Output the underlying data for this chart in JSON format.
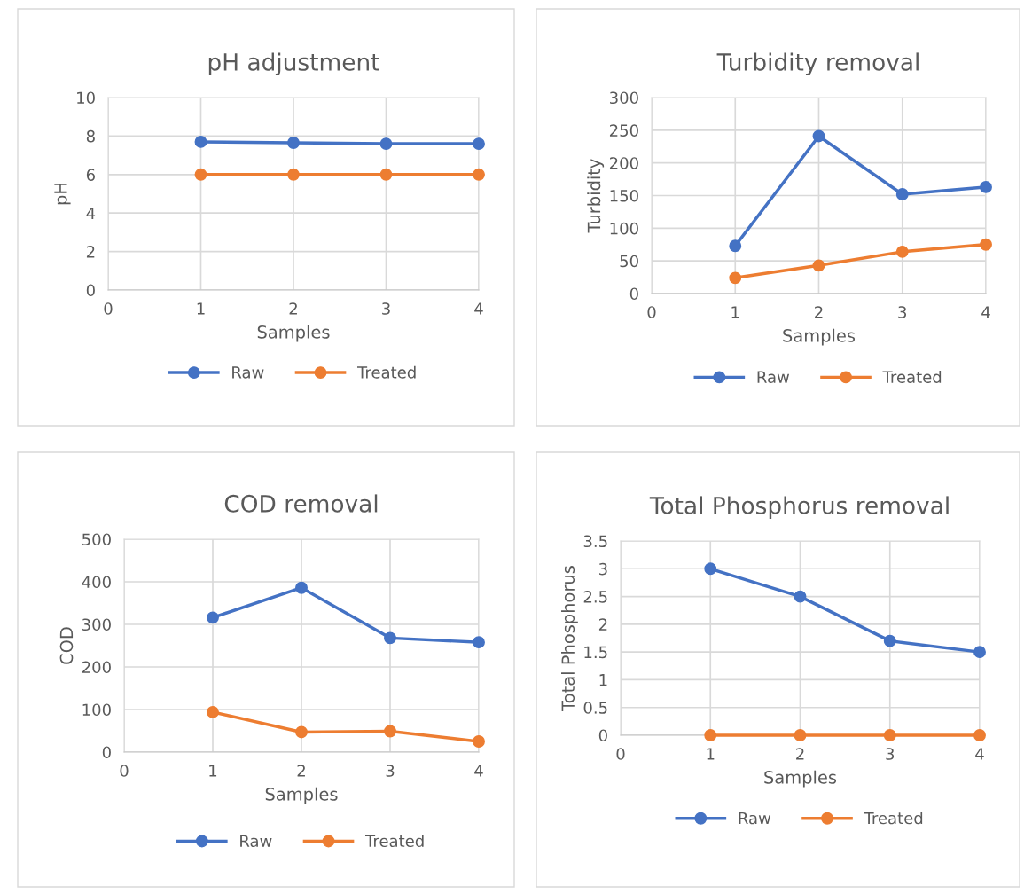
{
  "chart_data": [
    {
      "type": "line",
      "title": "pH adjustment",
      "xlabel": "Samples",
      "ylabel": "pH",
      "xlim": [
        0,
        4
      ],
      "xticks": [
        0,
        1,
        2,
        3,
        4
      ],
      "ylim": [
        0,
        10
      ],
      "yticks": [
        0,
        2,
        4,
        6,
        8,
        10
      ],
      "grid": true,
      "legend": "bottom",
      "marker": "circle",
      "line_style": "solid",
      "series": [
        {
          "name": "Raw",
          "color": "#4472c4",
          "x": [
            1,
            2,
            3,
            4
          ],
          "values": [
            7.7,
            7.65,
            7.6,
            7.6
          ]
        },
        {
          "name": "Treated",
          "color": "#ed7d31",
          "x": [
            1,
            2,
            3,
            4
          ],
          "values": [
            6,
            6,
            6,
            6
          ]
        }
      ]
    },
    {
      "type": "line",
      "title": "Turbidity removal",
      "xlabel": "Samples",
      "ylabel": "Turbidity",
      "xlim": [
        0,
        4
      ],
      "xticks": [
        0,
        1,
        2,
        3,
        4
      ],
      "ylim": [
        0,
        300
      ],
      "yticks": [
        0,
        50,
        100,
        150,
        200,
        250,
        300
      ],
      "grid": true,
      "legend": "bottom",
      "marker": "circle",
      "line_style": "solid",
      "series": [
        {
          "name": "Raw",
          "color": "#4472c4",
          "x": [
            1,
            2,
            3,
            4
          ],
          "values": [
            73,
            241,
            152,
            163
          ]
        },
        {
          "name": "Treated",
          "color": "#ed7d31",
          "x": [
            1,
            2,
            3,
            4
          ],
          "values": [
            24,
            43,
            64,
            75
          ]
        }
      ]
    },
    {
      "type": "line",
      "title": "COD removal",
      "xlabel": "Samples",
      "ylabel": "COD",
      "xlim": [
        0,
        4
      ],
      "xticks": [
        0,
        1,
        2,
        3,
        4
      ],
      "ylim": [
        0,
        500
      ],
      "yticks": [
        0,
        100,
        200,
        300,
        400,
        500
      ],
      "grid": true,
      "legend": "bottom",
      "marker": "circle",
      "line_style": "solid",
      "series": [
        {
          "name": "Raw",
          "color": "#4472c4",
          "x": [
            1,
            2,
            3,
            4
          ],
          "values": [
            316,
            386,
            268,
            258
          ]
        },
        {
          "name": "Treated",
          "color": "#ed7d31",
          "x": [
            1,
            2,
            3,
            4
          ],
          "values": [
            94,
            47,
            49,
            25
          ]
        }
      ]
    },
    {
      "type": "line",
      "title": "Total Phosphorus removal",
      "xlabel": "Samples",
      "ylabel": "Total Phosphorus",
      "xlim": [
        0,
        4
      ],
      "xticks": [
        0,
        1,
        2,
        3,
        4
      ],
      "ylim": [
        0,
        3.5
      ],
      "yticks": [
        0,
        0.5,
        1,
        1.5,
        2,
        2.5,
        3,
        3.5
      ],
      "grid": true,
      "legend": "bottom",
      "marker": "circle",
      "line_style": "solid",
      "series": [
        {
          "name": "Raw",
          "color": "#4472c4",
          "x": [
            1,
            2,
            3,
            4
          ],
          "values": [
            3,
            2.5,
            1.7,
            1.5
          ]
        },
        {
          "name": "Treated",
          "color": "#ed7d31",
          "x": [
            1,
            2,
            3,
            4
          ],
          "values": [
            0,
            0,
            0,
            0
          ]
        }
      ]
    }
  ]
}
